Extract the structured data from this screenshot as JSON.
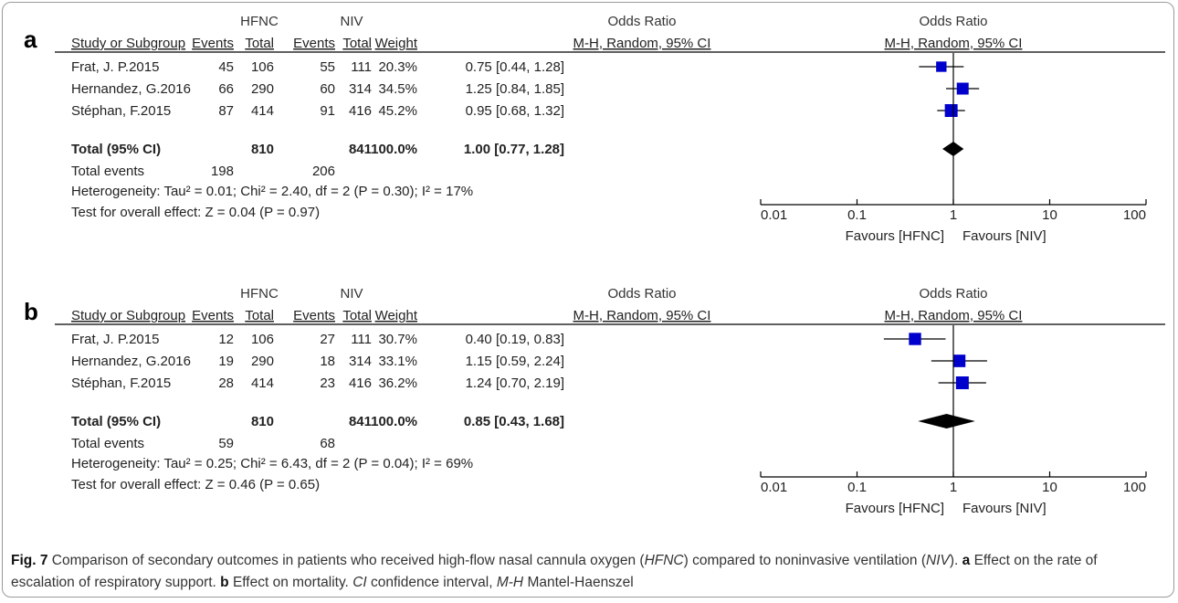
{
  "caption": {
    "fig_label": "Fig. 7",
    "t1": " Comparison of secondary outcomes in patients who received high-flow nasal cannula oxygen (",
    "i1": "HFNC",
    "t2": ") compared to noninvasive ventilation (",
    "i2": "NIV",
    "t3": "). ",
    "b1": "a",
    "t4": " Effect on the rate of escalation of respiratory support. ",
    "b2": "b",
    "t5": " Effect on mortality. ",
    "i3": "CI",
    "t6": " confidence interval, ",
    "i4": "M-H",
    "t7": " Mantel-Haenszel"
  },
  "headers": {
    "group1": "HFNC",
    "group2": "NIV",
    "or_title": "Odds Ratio",
    "study": "Study or Subgroup",
    "events": "Events",
    "total": "Total",
    "weight": "Weight",
    "method": "M-H, Random, 95% CI"
  },
  "colors": {
    "box": "#0000cc",
    "diamond": "#000000",
    "line": "#000000",
    "text": "#222222"
  },
  "chart_data": [
    {
      "type": "forest",
      "panel": "a",
      "x_scale": "log",
      "xlim": [
        0.01,
        100
      ],
      "ticks": [
        0.01,
        0.1,
        1,
        10,
        100
      ],
      "tick_labels": [
        "0.01",
        "0.1",
        "1",
        "10",
        "100"
      ],
      "favours_left": "Favours [HFNC]",
      "favours_right": "Favours [NIV]",
      "studies": [
        {
          "name": "Frat, J. P.2015",
          "e1": "45",
          "n1": "106",
          "e2": "55",
          "n2": "111",
          "weight": "20.3%",
          "ci_text": "0.75 [0.44, 1.28]",
          "or": 0.75,
          "lo": 0.44,
          "hi": 1.28,
          "w": 20.3
        },
        {
          "name": "Hernandez, G.2016",
          "e1": "66",
          "n1": "290",
          "e2": "60",
          "n2": "314",
          "weight": "34.5%",
          "ci_text": "1.25 [0.84, 1.85]",
          "or": 1.25,
          "lo": 0.84,
          "hi": 1.85,
          "w": 34.5
        },
        {
          "name": "Stéphan, F.2015",
          "e1": "87",
          "n1": "414",
          "e2": "91",
          "n2": "416",
          "weight": "45.2%",
          "ci_text": "0.95 [0.68, 1.32]",
          "or": 0.95,
          "lo": 0.68,
          "hi": 1.32,
          "w": 45.2
        }
      ],
      "total": {
        "label": "Total (95% CI)",
        "n1": "810",
        "n2": "841",
        "weight": "100.0%",
        "ci_text": "1.00 [0.77, 1.28]",
        "or": 1.0,
        "lo": 0.77,
        "hi": 1.28
      },
      "total_events": {
        "label": "Total events",
        "e1": "198",
        "e2": "206"
      },
      "heterogeneity": "Heterogeneity: Tau² = 0.01; Chi² = 2.40, df = 2 (P = 0.30); I² = 17%",
      "overall_effect": "Test for overall effect: Z = 0.04 (P = 0.97)"
    },
    {
      "type": "forest",
      "panel": "b",
      "x_scale": "log",
      "xlim": [
        0.01,
        100
      ],
      "ticks": [
        0.01,
        0.1,
        1,
        10,
        100
      ],
      "tick_labels": [
        "0.01",
        "0.1",
        "1",
        "10",
        "100"
      ],
      "favours_left": "Favours [HFNC]",
      "favours_right": "Favours [NIV]",
      "studies": [
        {
          "name": "Frat, J. P.2015",
          "e1": "12",
          "n1": "106",
          "e2": "27",
          "n2": "111",
          "weight": "30.7%",
          "ci_text": "0.40 [0.19, 0.83]",
          "or": 0.4,
          "lo": 0.19,
          "hi": 0.83,
          "w": 30.7
        },
        {
          "name": "Hernandez, G.2016",
          "e1": "19",
          "n1": "290",
          "e2": "18",
          "n2": "314",
          "weight": "33.1%",
          "ci_text": "1.15 [0.59, 2.24]",
          "or": 1.15,
          "lo": 0.59,
          "hi": 2.24,
          "w": 33.1
        },
        {
          "name": "Stéphan, F.2015",
          "e1": "28",
          "n1": "414",
          "e2": "23",
          "n2": "416",
          "weight": "36.2%",
          "ci_text": "1.24 [0.70, 2.19]",
          "or": 1.24,
          "lo": 0.7,
          "hi": 2.19,
          "w": 36.2
        }
      ],
      "total": {
        "label": "Total (95% CI)",
        "n1": "810",
        "n2": "841",
        "weight": "100.0%",
        "ci_text": "0.85 [0.43, 1.68]",
        "or": 0.85,
        "lo": 0.43,
        "hi": 1.68
      },
      "total_events": {
        "label": "Total events",
        "e1": "59",
        "e2": "68"
      },
      "heterogeneity": "Heterogeneity: Tau² = 0.25; Chi² = 6.43, df = 2 (P = 0.04); I² = 69%",
      "overall_effect": "Test for overall effect: Z = 0.46 (P = 0.65)"
    }
  ]
}
